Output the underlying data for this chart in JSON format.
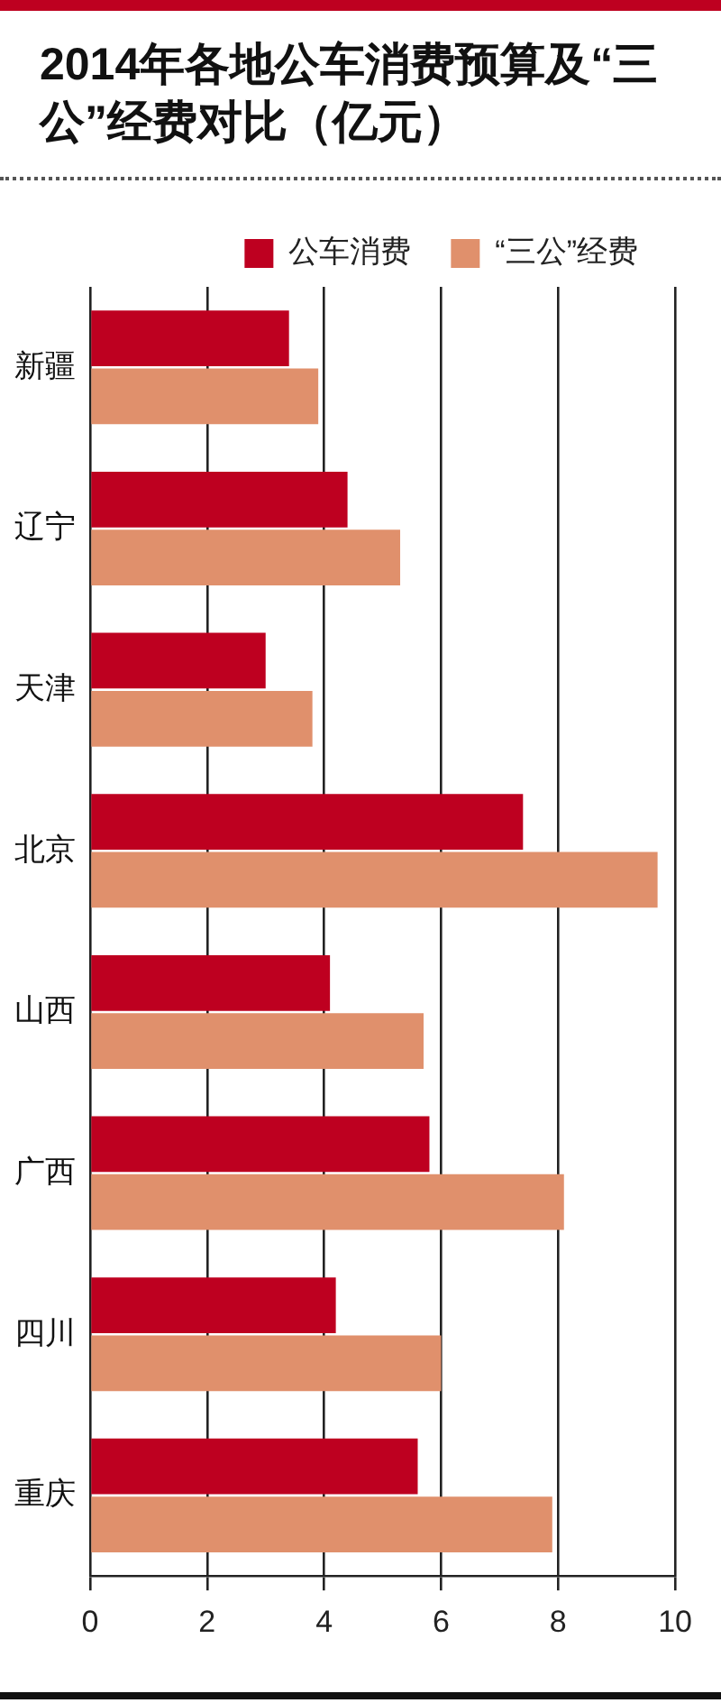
{
  "chart_data": {
    "type": "bar",
    "orientation": "horizontal",
    "title": "2014年各地公车消费预算及“三公”经费对比（亿元）",
    "categories": [
      "新疆",
      "辽宁",
      "天津",
      "北京",
      "山西",
      "广西",
      "四川",
      "重庆"
    ],
    "series": [
      {
        "name": "公车消费",
        "color": "#be0020",
        "values": [
          3.4,
          4.4,
          3.0,
          7.4,
          4.1,
          5.8,
          4.2,
          5.6
        ]
      },
      {
        "name": "“三公”经费",
        "color": "#e0906c",
        "values": [
          3.9,
          5.3,
          3.8,
          9.7,
          5.7,
          8.1,
          6.0,
          7.9
        ]
      }
    ],
    "xlim": [
      0,
      10
    ],
    "xticks": [
      0,
      2,
      4,
      6,
      8,
      10
    ],
    "grid": "x",
    "legend": "top right"
  }
}
